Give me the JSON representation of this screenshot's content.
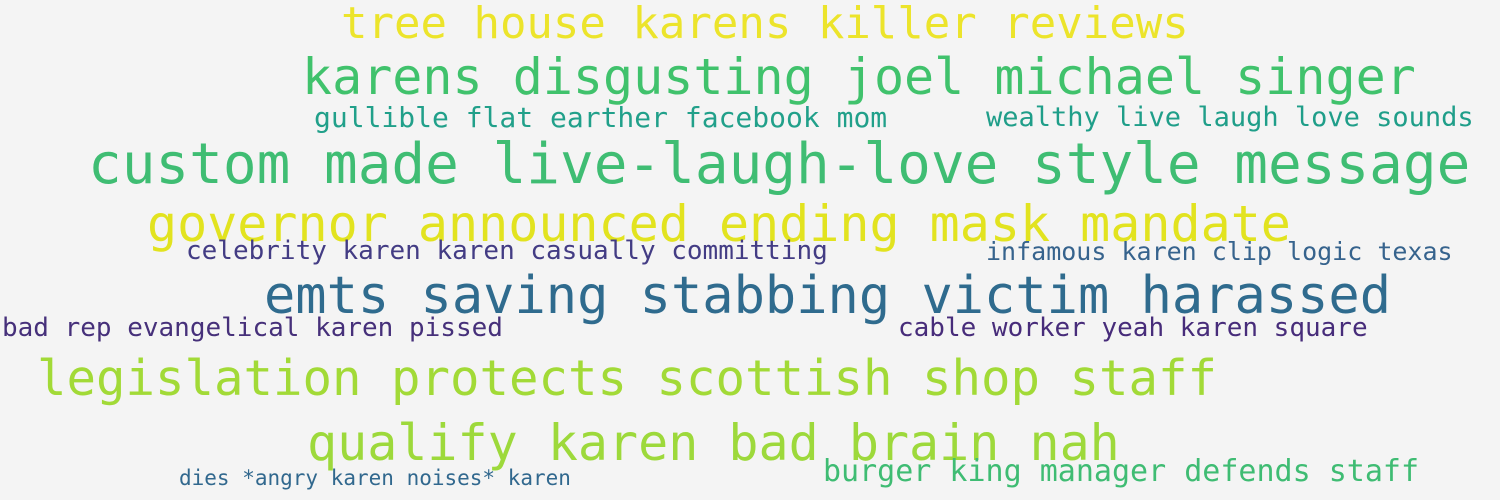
{
  "background": "#f4f4f4",
  "phrases": [
    {
      "text": "tree house karens killer reviews",
      "color": "#ece42b"
    },
    {
      "text": "karens disgusting joel michael singer",
      "color": "#40c26c"
    },
    {
      "text": "gullible flat earther facebook mom",
      "color": "#21a08a"
    },
    {
      "text": "wealthy live laugh love sounds",
      "color": "#1f9e89"
    },
    {
      "text": "custom made live-laugh-love style message",
      "color": "#3fbd73"
    },
    {
      "text": "governor announced ending mask mandate",
      "color": "#e2e31f"
    },
    {
      "text": "celebrity karen karen casually committing",
      "color": "#433c84"
    },
    {
      "text": "infamous karen clip logic texas",
      "color": "#36638d"
    },
    {
      "text": "emts saving stabbing victim harassed",
      "color": "#2f6b8e"
    },
    {
      "text": "bad rep evangelical karen pissed",
      "color": "#46307a"
    },
    {
      "text": "cable worker yeah karen square",
      "color": "#472c7a"
    },
    {
      "text": "legislation protects scottish shop staff",
      "color": "#a2da37"
    },
    {
      "text": "qualify karen bad brain nah",
      "color": "#9dd93b"
    },
    {
      "text": "burger king manager defends staff",
      "color": "#3fbc73"
    },
    {
      "text": "dies *angry karen noises* karen",
      "color": "#31688e"
    }
  ]
}
